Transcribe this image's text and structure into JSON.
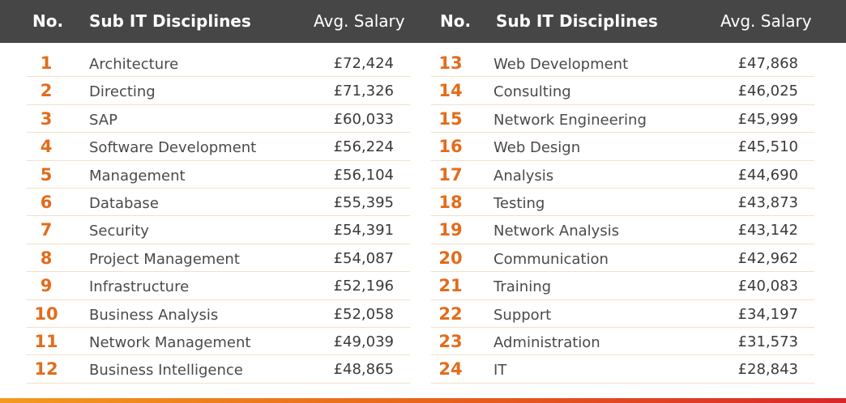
{
  "header": {
    "no": "No.",
    "discipline": "Sub IT Disciplines",
    "salary": "Avg. Salary"
  },
  "colors": {
    "header_bg": "#464646",
    "accent": "#e36c1b",
    "row_divider": "#f2e0c7"
  },
  "left_rows": [
    {
      "no": "1",
      "discipline": "Architecture",
      "salary": "£72,424"
    },
    {
      "no": "2",
      "discipline": "Directing",
      "salary": "£71,326"
    },
    {
      "no": "3",
      "discipline": "SAP",
      "salary": "£60,033"
    },
    {
      "no": "4",
      "discipline": "Software Development",
      "salary": "£56,224"
    },
    {
      "no": "5",
      "discipline": "Management",
      "salary": "£56,104"
    },
    {
      "no": "6",
      "discipline": "Database",
      "salary": "£55,395"
    },
    {
      "no": "7",
      "discipline": "Security",
      "salary": "£54,391"
    },
    {
      "no": "8",
      "discipline": "Project Management",
      "salary": "£54,087"
    },
    {
      "no": "9",
      "discipline": "Infrastructure",
      "salary": "£52,196"
    },
    {
      "no": "10",
      "discipline": "Business Analysis",
      "salary": "£52,058"
    },
    {
      "no": "11",
      "discipline": "Network Management",
      "salary": "£49,039"
    },
    {
      "no": "12",
      "discipline": "Business Intelligence",
      "salary": "£48,865"
    }
  ],
  "right_rows": [
    {
      "no": "13",
      "discipline": "Web Development",
      "salary": "£47,868"
    },
    {
      "no": "14",
      "discipline": "Consulting",
      "salary": "£46,025"
    },
    {
      "no": "15",
      "discipline": "Network Engineering",
      "salary": "£45,999"
    },
    {
      "no": "16",
      "discipline": "Web Design",
      "salary": "£45,510"
    },
    {
      "no": "17",
      "discipline": "Analysis",
      "salary": "£44,690"
    },
    {
      "no": "18",
      "discipline": "Testing",
      "salary": "£43,873"
    },
    {
      "no": "19",
      "discipline": "Network Analysis",
      "salary": "£43,142"
    },
    {
      "no": "20",
      "discipline": "Communication",
      "salary": "£42,962"
    },
    {
      "no": "21",
      "discipline": "Training",
      "salary": "£40,083"
    },
    {
      "no": "22",
      "discipline": "Support",
      "salary": "£34,197"
    },
    {
      "no": "23",
      "discipline": "Administration",
      "salary": "£31,573"
    },
    {
      "no": "24",
      "discipline": "IT",
      "salary": "£28,843"
    }
  ]
}
